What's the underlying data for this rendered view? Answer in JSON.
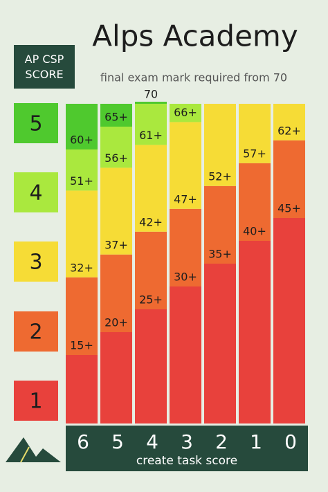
{
  "chart_data": {
    "type": "threshold-bar",
    "title": "Alps Academy",
    "subtitle": "final exam mark required from 70",
    "legend_title": "AP CSP SCORE",
    "xlabel": "create task score",
    "categories": [
      "6",
      "5",
      "4",
      "3",
      "2",
      "1",
      "0"
    ],
    "ylim": [
      0,
      70
    ],
    "series": [
      {
        "name": "1",
        "color": "#e8413c",
        "values": [
          0,
          0,
          0,
          0,
          0,
          0,
          0
        ]
      },
      {
        "name": "2",
        "color": "#ee6a31",
        "values": [
          15,
          20,
          25,
          30,
          35,
          40,
          45
        ],
        "value_labels": [
          "15+",
          "20+",
          "25+",
          "30+",
          "35+",
          "40+",
          "45+"
        ]
      },
      {
        "name": "3",
        "color": "#f6dc36",
        "values": [
          32,
          37,
          42,
          47,
          52,
          57,
          62
        ],
        "value_labels": [
          "32+",
          "37+",
          "42+",
          "47+",
          "52+",
          "57+",
          "62+"
        ]
      },
      {
        "name": "4",
        "color": "#aae83e",
        "values": [
          51,
          56,
          61,
          66,
          null,
          null,
          null
        ],
        "value_labels": [
          "51+",
          "56+",
          "61+",
          "66+",
          null,
          null,
          null
        ]
      },
      {
        "name": "5",
        "color": "#4fc92e",
        "values": [
          60,
          65,
          70,
          null,
          null,
          null,
          null
        ],
        "value_labels": [
          "60+",
          "65+",
          "70",
          null,
          null,
          null,
          null
        ]
      }
    ]
  }
}
